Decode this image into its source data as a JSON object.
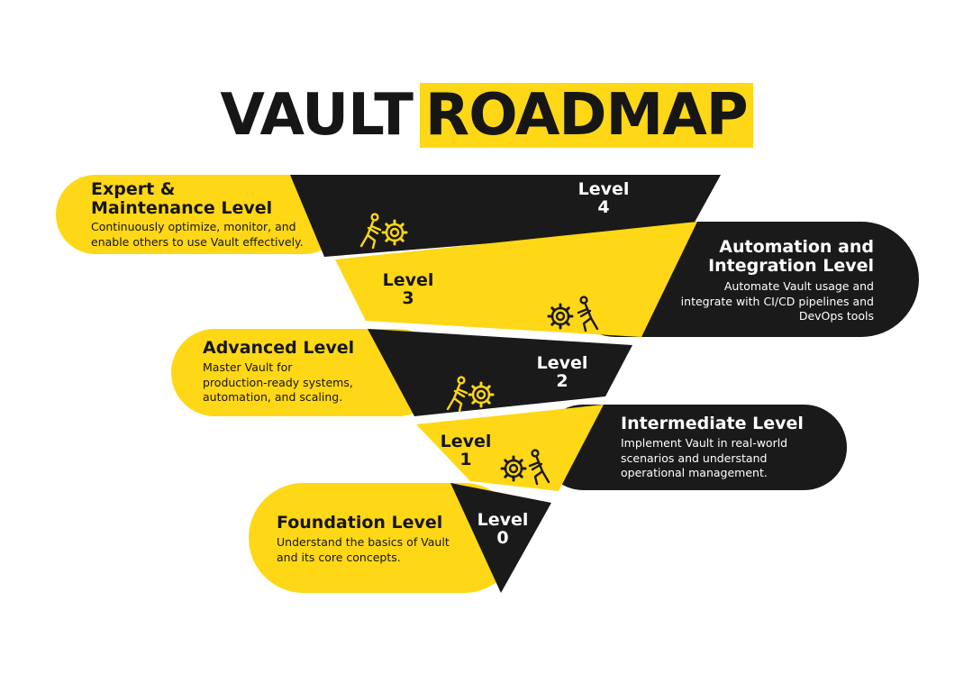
{
  "title": {
    "word1": "VAULT",
    "word2": "ROADMAP"
  },
  "colors": {
    "yellow": "#fed716",
    "black": "#1a1a1a",
    "text_dark": "#161616",
    "text_light": "#ffffff"
  },
  "levels": [
    {
      "label": "Level",
      "number": "4",
      "heading_line1": "Expert &",
      "heading_line2": "Maintenance Level",
      "desc_line1": "Continuously optimize, monitor, and",
      "desc_line2": "enable others to use Vault effectively.",
      "icon": "person-pushing-gears-icon"
    },
    {
      "label": "Level",
      "number": "3",
      "heading_line1": "Automation and",
      "heading_line2": "Integration Level",
      "desc_line1": "Automate Vault usage and",
      "desc_line2": "integrate with CI/CD pipelines and",
      "desc_line3": "DevOps tools",
      "icon": "gears-person-icon"
    },
    {
      "label": "Level",
      "number": "2",
      "heading": "Advanced Level",
      "desc_line1": "Master Vault for",
      "desc_line2": "production-ready systems,",
      "desc_line3": "automation, and scaling.",
      "icon": "person-pushing-gears-icon"
    },
    {
      "label": "Level",
      "number": "1",
      "heading": "Intermediate Level",
      "desc_line1": "Implement Vault in real-world",
      "desc_line2": "scenarios and understand",
      "desc_line3": "operational management.",
      "icon": "gears-person-icon"
    },
    {
      "label": "Level",
      "number": "0",
      "heading": "Foundation Level",
      "desc_line1": "Understand the basics of Vault",
      "desc_line2": "and its core concepts."
    }
  ]
}
